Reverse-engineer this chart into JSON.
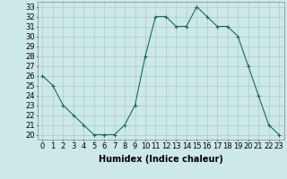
{
  "x": [
    0,
    1,
    2,
    3,
    4,
    5,
    6,
    7,
    8,
    9,
    10,
    11,
    12,
    13,
    14,
    15,
    16,
    17,
    18,
    19,
    20,
    21,
    22,
    23
  ],
  "y": [
    26,
    25,
    23,
    22,
    21,
    20,
    20,
    20,
    21,
    23,
    28,
    32,
    32,
    31,
    31,
    33,
    32,
    31,
    31,
    30,
    27,
    24,
    21,
    20
  ],
  "xlabel": "Humidex (Indice chaleur)",
  "xlim": [
    -0.5,
    23.5
  ],
  "ylim": [
    19.5,
    33.5
  ],
  "yticks": [
    20,
    21,
    22,
    23,
    24,
    25,
    26,
    27,
    28,
    29,
    30,
    31,
    32,
    33
  ],
  "xticks": [
    0,
    1,
    2,
    3,
    4,
    5,
    6,
    7,
    8,
    9,
    10,
    11,
    12,
    13,
    14,
    15,
    16,
    17,
    18,
    19,
    20,
    21,
    22,
    23
  ],
  "line_color": "#1a6b5a",
  "marker": "+",
  "bg_color": "#cce8e8",
  "grid_color": "#aacccc",
  "label_fontsize": 7,
  "tick_fontsize": 6
}
